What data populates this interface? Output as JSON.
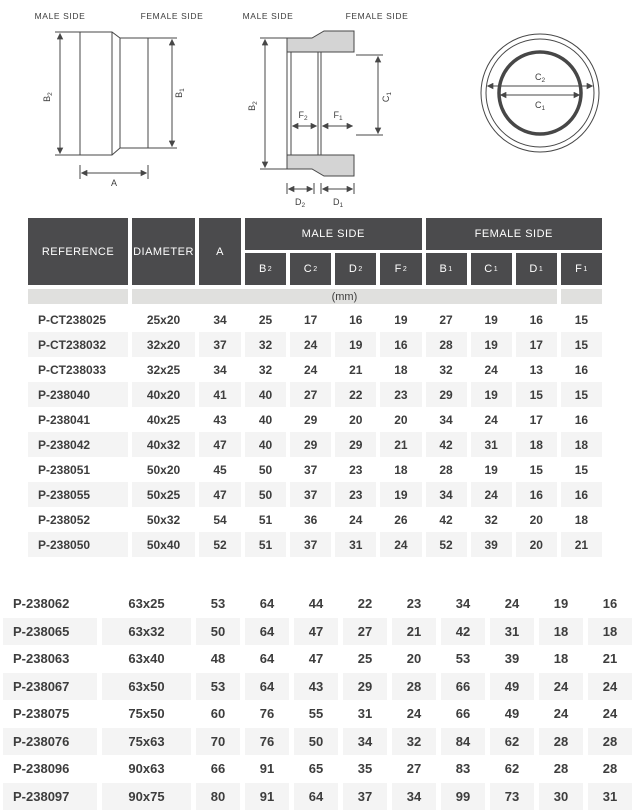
{
  "colors": {
    "header_bg": "#4b4b4d",
    "header_text": "#ffffff",
    "unit_row_bg": "#e0e0de",
    "row_alt_bg": "#f4f4f4",
    "text": "#3d3d3d",
    "diagram_fill": "#d4d4d4",
    "diagram_line": "#474747"
  },
  "diagrams": {
    "side_view": {
      "male_label": "MALE SIDE",
      "female_label": "FEMALE SIDE",
      "dim_b2": {
        "base": "B",
        "sub": "2"
      },
      "dim_b1": {
        "base": "B",
        "sub": "1"
      },
      "dim_a": "A"
    },
    "section_view": {
      "male_label": "MALE SIDE",
      "female_label": "FEMALE SIDE",
      "dim_b2": {
        "base": "B",
        "sub": "2"
      },
      "dim_c1": {
        "base": "C",
        "sub": "1"
      },
      "dim_f2": {
        "base": "F",
        "sub": "2"
      },
      "dim_f1": {
        "base": "F",
        "sub": "1"
      },
      "dim_d2": {
        "base": "D",
        "sub": "2"
      },
      "dim_d1": {
        "base": "D",
        "sub": "1"
      }
    },
    "front_view": {
      "dim_c2": {
        "base": "C",
        "sub": "2"
      },
      "dim_c1": {
        "base": "C",
        "sub": "1"
      }
    }
  },
  "table": {
    "headers": {
      "reference": "REFERENCE",
      "diameter": "DIAMETER",
      "a": "A",
      "male_group": "MALE SIDE",
      "female_group": "FEMALE SIDE",
      "subcols": [
        {
          "base": "B",
          "sub": "2"
        },
        {
          "base": "C",
          "sub": "2"
        },
        {
          "base": "D",
          "sub": "2"
        },
        {
          "base": "F",
          "sub": "2"
        },
        {
          "base": "B",
          "sub": "1"
        },
        {
          "base": "C",
          "sub": "1"
        },
        {
          "base": "D",
          "sub": "1"
        },
        {
          "base": "F",
          "sub": "1"
        }
      ]
    },
    "unit": "(mm)",
    "rows_upper": [
      {
        "reference": "P-CT238025",
        "diameter": "25x20",
        "values": [
          34,
          25,
          17,
          16,
          19,
          27,
          19,
          16,
          15
        ]
      },
      {
        "reference": "P-CT238032",
        "diameter": "32x20",
        "values": [
          37,
          32,
          24,
          19,
          16,
          28,
          19,
          17,
          15
        ]
      },
      {
        "reference": "P-CT238033",
        "diameter": "32x25",
        "values": [
          34,
          32,
          24,
          21,
          18,
          32,
          24,
          13,
          16
        ]
      },
      {
        "reference": "P-238040",
        "diameter": "40x20",
        "values": [
          41,
          40,
          27,
          22,
          23,
          29,
          19,
          15,
          15
        ]
      },
      {
        "reference": "P-238041",
        "diameter": "40x25",
        "values": [
          43,
          40,
          29,
          20,
          20,
          34,
          24,
          17,
          16
        ]
      },
      {
        "reference": "P-238042",
        "diameter": "40x32",
        "values": [
          47,
          40,
          29,
          29,
          21,
          42,
          31,
          18,
          18
        ]
      },
      {
        "reference": "P-238051",
        "diameter": "50x20",
        "values": [
          45,
          50,
          37,
          23,
          18,
          28,
          19,
          15,
          15
        ]
      },
      {
        "reference": "P-238055",
        "diameter": "50x25",
        "values": [
          47,
          50,
          37,
          23,
          19,
          34,
          24,
          16,
          16
        ]
      },
      {
        "reference": "P-238052",
        "diameter": "50x32",
        "values": [
          54,
          51,
          36,
          24,
          26,
          42,
          32,
          20,
          18
        ]
      },
      {
        "reference": "P-238050",
        "diameter": "50x40",
        "values": [
          52,
          51,
          37,
          31,
          24,
          52,
          39,
          20,
          21
        ]
      }
    ],
    "rows_lower": [
      {
        "reference": "P-238062",
        "diameter": "63x25",
        "values": [
          53,
          64,
          44,
          22,
          23,
          34,
          24,
          19,
          16
        ]
      },
      {
        "reference": "P-238065",
        "diameter": "63x32",
        "values": [
          50,
          64,
          47,
          27,
          21,
          42,
          31,
          18,
          18
        ]
      },
      {
        "reference": "P-238063",
        "diameter": "63x40",
        "values": [
          48,
          64,
          47,
          25,
          20,
          53,
          39,
          18,
          21
        ]
      },
      {
        "reference": "P-238067",
        "diameter": "63x50",
        "values": [
          53,
          64,
          43,
          29,
          28,
          66,
          49,
          24,
          24
        ]
      },
      {
        "reference": "P-238075",
        "diameter": "75x50",
        "values": [
          60,
          76,
          55,
          31,
          24,
          66,
          49,
          24,
          24
        ]
      },
      {
        "reference": "P-238076",
        "diameter": "75x63",
        "values": [
          70,
          76,
          50,
          34,
          32,
          84,
          62,
          28,
          28
        ]
      },
      {
        "reference": "P-238096",
        "diameter": "90x63",
        "values": [
          66,
          91,
          65,
          35,
          27,
          83,
          62,
          28,
          28
        ]
      },
      {
        "reference": "P-238097",
        "diameter": "90x75",
        "values": [
          80,
          91,
          64,
          37,
          34,
          99,
          73,
          30,
          31
        ]
      }
    ]
  }
}
